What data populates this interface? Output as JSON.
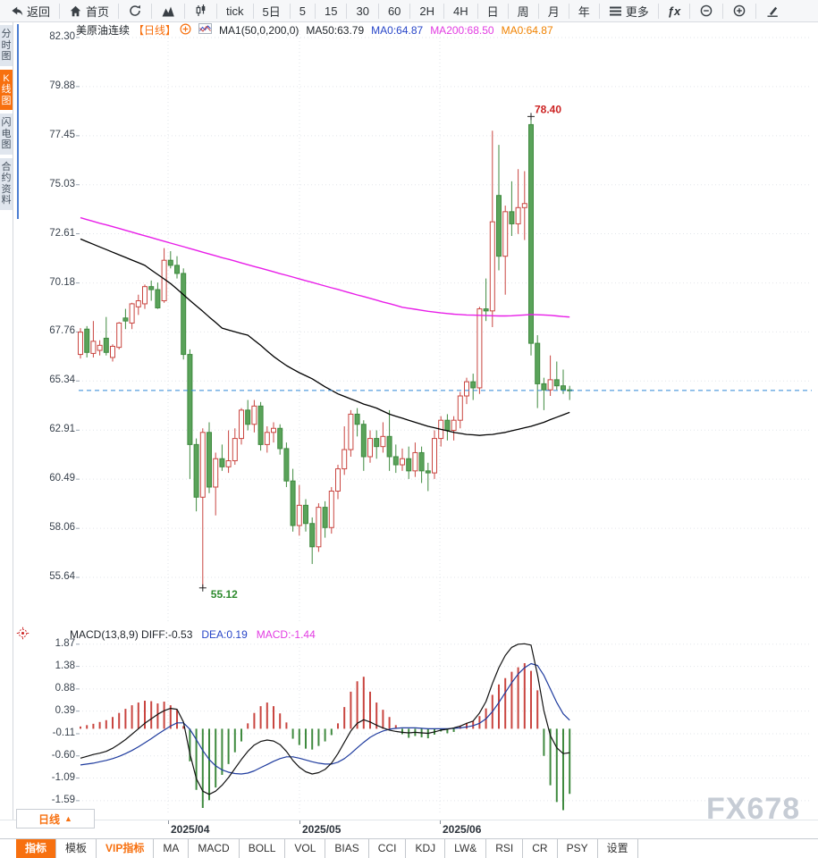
{
  "toolbar": {
    "items": [
      {
        "name": "back",
        "icon": "back-arrow",
        "label": "返回"
      },
      {
        "name": "home",
        "icon": "home",
        "label": "首页"
      },
      {
        "name": "refresh",
        "icon": "refresh",
        "label": ""
      },
      {
        "name": "mountain-chart",
        "icon": "mountain-chart",
        "label": ""
      },
      {
        "name": "candlestick-mode",
        "icon": "candlestick",
        "label": ""
      },
      {
        "name": "tick",
        "icon": "",
        "label": "tick"
      },
      {
        "name": "5d",
        "icon": "",
        "label": "5日"
      },
      {
        "name": "5m",
        "icon": "",
        "label": "5"
      },
      {
        "name": "15m",
        "icon": "",
        "label": "15"
      },
      {
        "name": "30m",
        "icon": "",
        "label": "30"
      },
      {
        "name": "60m",
        "icon": "",
        "label": "60"
      },
      {
        "name": "2h",
        "icon": "",
        "label": "2H"
      },
      {
        "name": "4h",
        "icon": "",
        "label": "4H"
      },
      {
        "name": "day",
        "icon": "",
        "label": "日"
      },
      {
        "name": "week",
        "icon": "",
        "label": "周"
      },
      {
        "name": "month",
        "icon": "",
        "label": "月"
      },
      {
        "name": "year",
        "icon": "",
        "label": "年"
      },
      {
        "name": "more",
        "icon": "menu",
        "label": "更多"
      },
      {
        "name": "fx",
        "icon": "fx",
        "label": ""
      },
      {
        "name": "zoom-out",
        "icon": "zoom-out",
        "label": ""
      },
      {
        "name": "zoom-in",
        "icon": "zoom-in",
        "label": ""
      },
      {
        "name": "draw",
        "icon": "pen",
        "label": ""
      }
    ]
  },
  "sidebar": {
    "items": [
      {
        "label": "分时图",
        "active": false
      },
      {
        "label": "K线图",
        "active": true
      },
      {
        "label": "闪电图",
        "active": false
      },
      {
        "label": "合约资料",
        "active": false
      }
    ]
  },
  "chart_header": {
    "title": "美原油连续",
    "period": "【日线】",
    "ma_param": "MA1(50,0,200,0)",
    "ma50_label": "MA50:63.79",
    "ma0_blue_label": "MA0:64.87",
    "ma200_label": "MA200:68.50",
    "ma0_orange_label": "MA0:64.87"
  },
  "macd_header": {
    "left": "MACD(13,8,9) DIFF:-0.53",
    "dea": "DEA:0.19",
    "macd": "MACD:-1.44"
  },
  "bottom": {
    "period_button": "日线",
    "period_arrow": "▲",
    "tabs": [
      {
        "label": "指标",
        "variant": "active"
      },
      {
        "label": "模板",
        "variant": ""
      },
      {
        "label": "VIP指标",
        "variant": "vip"
      },
      {
        "label": "MA",
        "variant": ""
      },
      {
        "label": "MACD",
        "variant": ""
      },
      {
        "label": "BOLL",
        "variant": ""
      },
      {
        "label": "VOL",
        "variant": ""
      },
      {
        "label": "BIAS",
        "variant": ""
      },
      {
        "label": "CCI",
        "variant": ""
      },
      {
        "label": "KDJ",
        "variant": ""
      },
      {
        "label": "LW&",
        "variant": ""
      },
      {
        "label": "RSI",
        "variant": ""
      },
      {
        "label": "CR",
        "variant": ""
      },
      {
        "label": "PSY",
        "variant": ""
      },
      {
        "label": "设置",
        "variant": ""
      }
    ]
  },
  "watermark": "FX678",
  "colors": {
    "up": "#c94540",
    "down": "#5aa35a",
    "down_stroke": "#3f8a3f",
    "ma50": "#000000",
    "ma200": "#e81ee8",
    "dea": "#1e3b9e",
    "diff": "#111111",
    "last_price_line": "#2f87d6",
    "grid": "#e2e5ea",
    "tick_mark": "#9aa6b2",
    "annotation_high": "#cc2222",
    "annotation_low": "#2e8b2e",
    "cross": "#222222",
    "accent": "#f7700f"
  },
  "chart_data": {
    "type": "candlestick+macd",
    "title": "美原油连续 日线",
    "y_ticks_main": [
      82.3,
      79.88,
      77.45,
      75.03,
      72.61,
      70.18,
      67.76,
      65.34,
      62.91,
      60.49,
      58.06,
      55.64
    ],
    "y_ticks_macd": [
      1.87,
      1.38,
      0.88,
      0.39,
      -0.11,
      -0.6,
      -1.09,
      -1.59
    ],
    "x_month_labels": [
      "2025/04",
      "2025/05",
      "2025/06"
    ],
    "last_price": 64.87,
    "high_annotation": {
      "text": "78.40",
      "candle_index": 70,
      "price": 78.4
    },
    "low_annotation": {
      "text": "55.12",
      "candle_index": 19,
      "price": 55.12
    },
    "candles": [
      [
        66.65,
        67.95,
        66.45,
        67.75
      ],
      [
        67.9,
        68.05,
        66.5,
        66.75
      ],
      [
        66.7,
        68.3,
        66.5,
        67.3
      ],
      [
        66.85,
        67.35,
        66.6,
        67.1
      ],
      [
        67.45,
        68.5,
        66.6,
        66.75
      ],
      [
        66.5,
        67.15,
        66.3,
        67.05
      ],
      [
        67.0,
        68.25,
        66.9,
        68.2
      ],
      [
        68.45,
        68.9,
        67.9,
        68.3
      ],
      [
        68.2,
        69.2,
        67.9,
        69.15
      ],
      [
        69.0,
        69.6,
        68.6,
        69.3
      ],
      [
        69.15,
        70.1,
        68.9,
        70.0
      ],
      [
        70.0,
        70.3,
        69.3,
        69.85
      ],
      [
        69.85,
        70.2,
        68.9,
        68.95
      ],
      [
        69.3,
        71.9,
        69.2,
        71.3
      ],
      [
        71.3,
        71.75,
        70.9,
        71.05
      ],
      [
        71.05,
        71.5,
        70.4,
        70.65
      ],
      [
        70.65,
        70.9,
        66.4,
        66.65
      ],
      [
        66.65,
        66.9,
        60.5,
        62.2
      ],
      [
        62.2,
        62.5,
        58.9,
        59.6
      ],
      [
        59.6,
        63.0,
        55.12,
        62.8
      ],
      [
        62.8,
        63.3,
        59.8,
        60.1
      ],
      [
        60.1,
        61.8,
        58.7,
        61.5
      ],
      [
        61.5,
        62.2,
        60.9,
        61.1
      ],
      [
        61.1,
        62.9,
        60.8,
        61.4
      ],
      [
        61.4,
        63.0,
        61.2,
        62.5
      ],
      [
        62.5,
        64.0,
        62.2,
        63.9
      ],
      [
        63.9,
        64.4,
        62.9,
        63.2
      ],
      [
        63.2,
        64.4,
        62.8,
        64.1
      ],
      [
        64.1,
        64.3,
        61.9,
        62.2
      ],
      [
        62.2,
        63.1,
        61.8,
        62.8
      ],
      [
        62.8,
        63.3,
        62.3,
        63.0
      ],
      [
        63.0,
        63.2,
        61.7,
        62.0
      ],
      [
        62.0,
        62.3,
        60.1,
        60.4
      ],
      [
        60.4,
        61.0,
        57.9,
        58.2
      ],
      [
        58.2,
        60.2,
        57.7,
        59.2
      ],
      [
        59.2,
        59.5,
        57.9,
        58.3
      ],
      [
        58.3,
        58.6,
        56.3,
        57.15
      ],
      [
        57.15,
        59.3,
        56.9,
        59.1
      ],
      [
        59.1,
        59.4,
        57.6,
        58.1
      ],
      [
        58.1,
        60.1,
        57.8,
        59.9
      ],
      [
        59.9,
        61.2,
        59.5,
        61.0
      ],
      [
        61.0,
        63.1,
        60.7,
        61.95
      ],
      [
        61.95,
        63.9,
        61.6,
        63.7
      ],
      [
        63.7,
        64.0,
        62.6,
        63.2
      ],
      [
        63.2,
        63.4,
        60.9,
        61.6
      ],
      [
        61.6,
        62.9,
        61.3,
        62.5
      ],
      [
        62.5,
        62.9,
        61.5,
        62.1
      ],
      [
        62.1,
        63.3,
        61.8,
        62.6
      ],
      [
        62.6,
        63.9,
        60.9,
        61.6
      ],
      [
        61.6,
        62.2,
        60.8,
        61.2
      ],
      [
        61.2,
        62.0,
        60.9,
        61.5
      ],
      [
        61.5,
        62.1,
        60.5,
        60.9
      ],
      [
        60.9,
        62.3,
        60.6,
        61.8
      ],
      [
        61.8,
        62.1,
        60.3,
        60.9
      ],
      [
        60.9,
        61.3,
        59.9,
        60.8
      ],
      [
        60.8,
        62.9,
        60.5,
        62.5
      ],
      [
        62.5,
        63.6,
        62.1,
        63.4
      ],
      [
        63.4,
        63.7,
        62.4,
        62.9
      ],
      [
        62.9,
        63.6,
        62.4,
        63.4
      ],
      [
        63.4,
        64.8,
        63.0,
        64.6
      ],
      [
        64.6,
        65.5,
        64.2,
        65.3
      ],
      [
        65.3,
        65.7,
        64.4,
        65.0
      ],
      [
        65.0,
        69.0,
        64.7,
        68.9
      ],
      [
        68.9,
        70.4,
        68.3,
        68.8
      ],
      [
        68.8,
        77.7,
        68.0,
        73.2
      ],
      [
        74.5,
        77.0,
        70.8,
        71.5
      ],
      [
        71.5,
        74.0,
        69.6,
        73.7
      ],
      [
        73.7,
        75.2,
        72.5,
        73.1
      ],
      [
        73.1,
        75.8,
        72.6,
        73.9
      ],
      [
        73.9,
        75.7,
        72.3,
        74.1
      ],
      [
        78.0,
        78.4,
        66.6,
        67.2
      ],
      [
        67.2,
        67.6,
        64.0,
        65.2
      ],
      [
        65.2,
        65.5,
        63.9,
        64.9
      ],
      [
        64.9,
        66.6,
        64.6,
        65.4
      ],
      [
        65.4,
        66.3,
        64.9,
        65.1
      ],
      [
        65.1,
        65.9,
        64.7,
        64.9
      ],
      [
        64.9,
        65.1,
        64.4,
        64.87
      ]
    ],
    "ma50": [
      72.35,
      72.22,
      72.09,
      71.96,
      71.83,
      71.7,
      71.57,
      71.44,
      71.31,
      71.18,
      71.05,
      70.82,
      70.6,
      70.38,
      70.15,
      69.88,
      69.6,
      69.32,
      69.05,
      68.78,
      68.5,
      68.23,
      67.95,
      67.86,
      67.77,
      67.68,
      67.6,
      67.35,
      67.1,
      66.82,
      66.55,
      66.32,
      66.1,
      65.92,
      65.75,
      65.6,
      65.45,
      65.25,
      65.05,
      64.88,
      64.7,
      64.58,
      64.45,
      64.33,
      64.2,
      64.1,
      64.0,
      63.85,
      63.7,
      63.6,
      63.5,
      63.4,
      63.3,
      63.2,
      63.1,
      63.03,
      62.95,
      62.88,
      62.8,
      62.75,
      62.7,
      62.68,
      62.65,
      62.68,
      62.7,
      62.75,
      62.8,
      62.88,
      62.95,
      63.03,
      63.1,
      63.2,
      63.3,
      63.43,
      63.55,
      63.67,
      63.79
    ],
    "ma200": [
      73.4,
      73.31,
      73.22,
      73.13,
      73.05,
      72.96,
      72.87,
      72.78,
      72.69,
      72.6,
      72.51,
      72.42,
      72.33,
      72.24,
      72.15,
      72.06,
      71.97,
      71.88,
      71.79,
      71.7,
      71.61,
      71.52,
      71.43,
      71.35,
      71.26,
      71.17,
      71.08,
      70.99,
      70.91,
      70.82,
      70.73,
      70.64,
      70.56,
      70.47,
      70.38,
      70.29,
      70.21,
      70.12,
      70.03,
      69.94,
      69.86,
      69.77,
      69.68,
      69.59,
      69.51,
      69.42,
      69.33,
      69.24,
      69.16,
      69.07,
      68.98,
      68.93,
      68.88,
      68.83,
      68.78,
      68.74,
      68.7,
      68.67,
      68.64,
      68.62,
      68.6,
      68.59,
      68.58,
      68.57,
      68.56,
      68.55,
      68.55,
      68.56,
      68.58,
      68.6,
      68.62,
      68.61,
      68.6,
      68.58,
      68.55,
      68.52,
      68.5
    ],
    "macd": {
      "diff": [
        -0.65,
        -0.61,
        -0.57,
        -0.54,
        -0.5,
        -0.43,
        -0.34,
        -0.24,
        -0.12,
        0.0,
        0.12,
        0.22,
        0.32,
        0.4,
        0.45,
        0.43,
        0.15,
        -0.55,
        -1.1,
        -1.38,
        -1.45,
        -1.38,
        -1.25,
        -1.08,
        -0.88,
        -0.68,
        -0.5,
        -0.36,
        -0.28,
        -0.25,
        -0.27,
        -0.35,
        -0.5,
        -0.7,
        -0.85,
        -0.95,
        -1.0,
        -0.97,
        -0.9,
        -0.76,
        -0.55,
        -0.3,
        -0.05,
        0.12,
        0.2,
        0.15,
        0.08,
        0.02,
        -0.03,
        -0.06,
        -0.08,
        -0.09,
        -0.08,
        -0.09,
        -0.1,
        -0.07,
        -0.03,
        -0.01,
        0.02,
        0.06,
        0.12,
        0.17,
        0.35,
        0.6,
        1.0,
        1.35,
        1.62,
        1.8,
        1.87,
        1.88,
        1.85,
        1.2,
        0.4,
        -0.15,
        -0.42,
        -0.55,
        -0.53
      ],
      "dea": [
        -0.8,
        -0.78,
        -0.76,
        -0.73,
        -0.7,
        -0.66,
        -0.61,
        -0.55,
        -0.48,
        -0.4,
        -0.31,
        -0.22,
        -0.12,
        -0.03,
        0.06,
        0.13,
        0.13,
        -0.01,
        -0.24,
        -0.48,
        -0.68,
        -0.82,
        -0.91,
        -0.96,
        -0.99,
        -1.0,
        -0.98,
        -0.93,
        -0.86,
        -0.79,
        -0.72,
        -0.66,
        -0.62,
        -0.62,
        -0.65,
        -0.69,
        -0.73,
        -0.76,
        -0.78,
        -0.78,
        -0.74,
        -0.66,
        -0.55,
        -0.42,
        -0.3,
        -0.19,
        -0.11,
        -0.05,
        -0.01,
        0.01,
        0.02,
        0.02,
        0.02,
        0.01,
        0.0,
        0.0,
        0.0,
        0.0,
        0.01,
        0.02,
        0.04,
        0.07,
        0.12,
        0.22,
        0.38,
        0.58,
        0.8,
        1.02,
        1.21,
        1.35,
        1.44,
        1.4,
        1.18,
        0.88,
        0.58,
        0.33,
        0.19
      ],
      "hist": [
        0.05,
        0.08,
        0.11,
        0.15,
        0.19,
        0.26,
        0.35,
        0.44,
        0.52,
        0.58,
        0.62,
        0.61,
        0.56,
        0.6,
        0.52,
        0.42,
        0.06,
        -0.72,
        -1.35,
        -1.75,
        -1.58,
        -1.3,
        -1.02,
        -0.78,
        -0.52,
        -0.28,
        0.12,
        0.35,
        0.5,
        0.58,
        0.5,
        0.34,
        0.14,
        -0.22,
        -0.36,
        -0.44,
        -0.46,
        -0.38,
        -0.28,
        -0.14,
        0.12,
        0.48,
        0.82,
        1.05,
        1.15,
        0.82,
        0.58,
        0.42,
        0.26,
        0.08,
        -0.12,
        -0.2,
        -0.16,
        -0.19,
        -0.21,
        -0.13,
        -0.06,
        -0.1,
        -0.07,
        0.07,
        0.13,
        0.17,
        0.28,
        0.45,
        0.75,
        0.98,
        1.12,
        1.26,
        1.36,
        1.45,
        1.28,
        0.85,
        -0.6,
        -1.25,
        -1.62,
        -1.8,
        -1.44
      ]
    }
  }
}
